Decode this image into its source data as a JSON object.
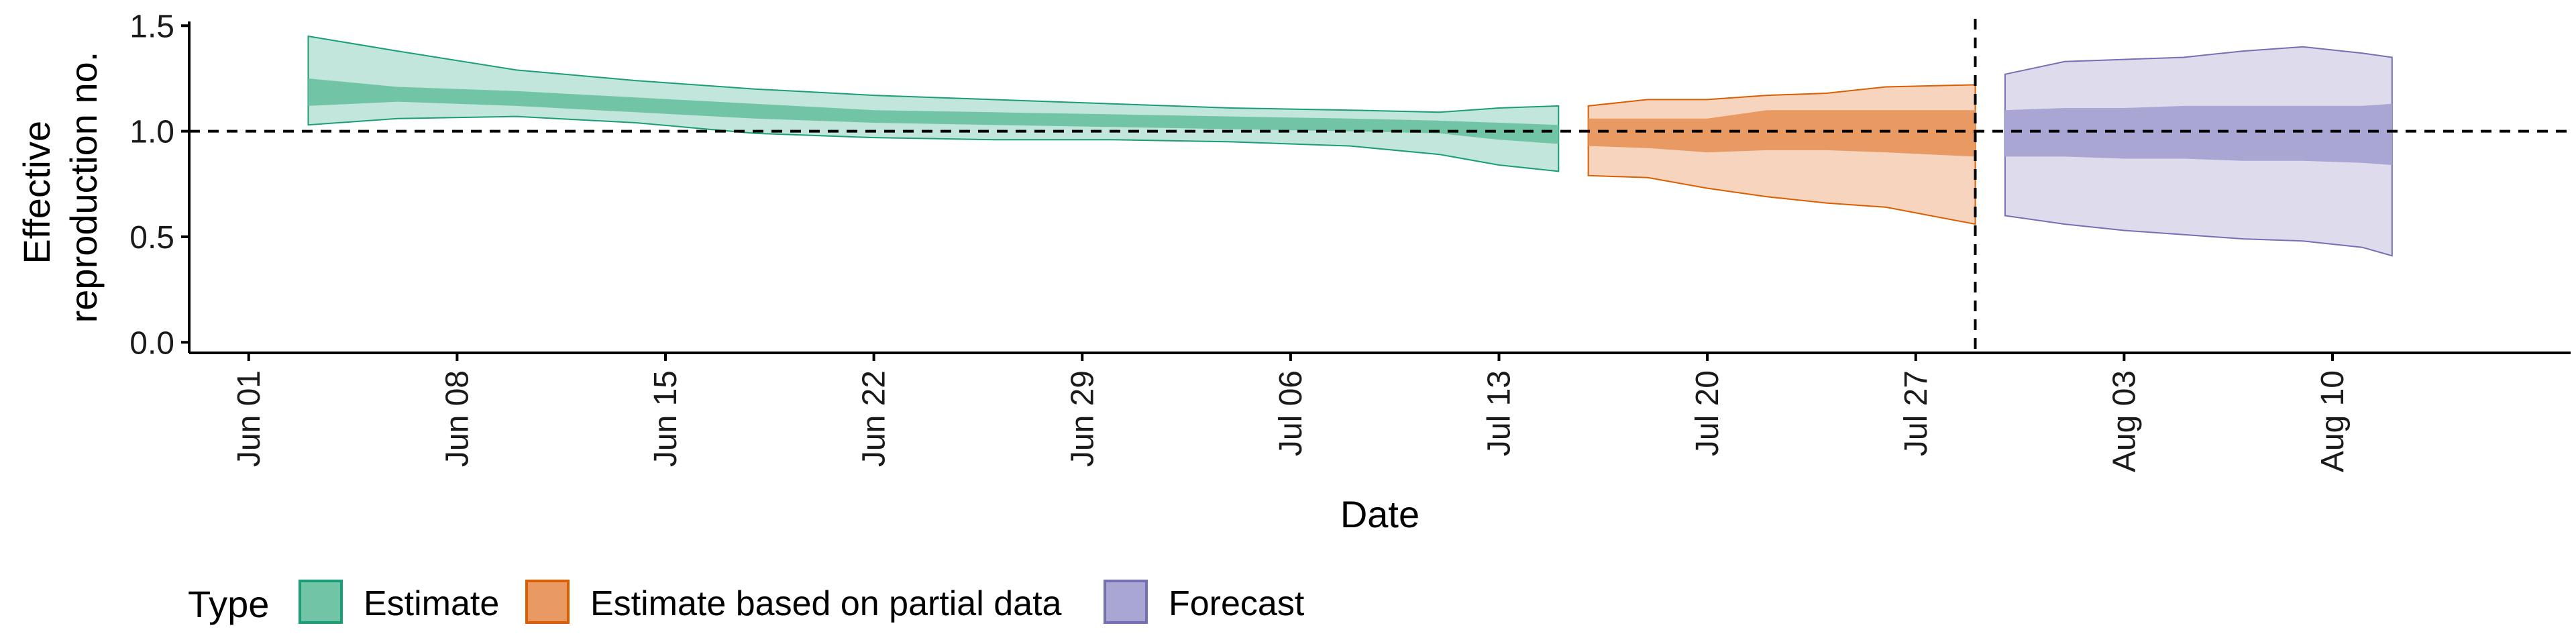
{
  "chart_data": {
    "type": "area",
    "xlabel": "Date",
    "ylabel_lines": [
      "Effective",
      "reproduction no."
    ],
    "ylim": [
      -0.05,
      1.52
    ],
    "yticks": [
      0.0,
      0.5,
      1.0,
      1.5
    ],
    "ytick_labels": [
      "0.0",
      "0.5",
      "1.0",
      "1.5"
    ],
    "xlim": [
      "2020-05-30",
      "2020-08-18"
    ],
    "xticks": [
      "2020-06-01",
      "2020-06-08",
      "2020-06-15",
      "2020-06-22",
      "2020-06-29",
      "2020-07-06",
      "2020-07-13",
      "2020-07-20",
      "2020-07-27",
      "2020-08-03",
      "2020-08-10"
    ],
    "xtick_labels": [
      "Jun 01",
      "Jun 08",
      "Jun 15",
      "Jun 22",
      "Jun 29",
      "Jul 06",
      "Jul 13",
      "Jul 20",
      "Jul 27",
      "Aug 03",
      "Aug 10"
    ],
    "reference_line_y": 1.0,
    "forecast_start": "2020-07-29",
    "legend_title": "Type",
    "legend_position": "bottom",
    "series": [
      {
        "name": "Estimate",
        "color": "#1b9e77",
        "fill_outer": "#c2e6db",
        "fill_inner": "#71c4a6",
        "dates": [
          "2020-06-03",
          "2020-06-06",
          "2020-06-10",
          "2020-06-14",
          "2020-06-18",
          "2020-06-22",
          "2020-06-26",
          "2020-06-30",
          "2020-07-04",
          "2020-07-08",
          "2020-07-11",
          "2020-07-13",
          "2020-07-15"
        ],
        "lower_90": [
          1.03,
          1.06,
          1.07,
          1.04,
          0.99,
          0.97,
          0.96,
          0.96,
          0.95,
          0.93,
          0.89,
          0.84,
          0.81
        ],
        "lower_50": [
          1.12,
          1.14,
          1.12,
          1.09,
          1.06,
          1.04,
          1.03,
          1.02,
          1.01,
          1.0,
          0.99,
          0.96,
          0.94
        ],
        "upper_50": [
          1.25,
          1.21,
          1.19,
          1.16,
          1.13,
          1.1,
          1.09,
          1.08,
          1.07,
          1.06,
          1.05,
          1.04,
          1.03
        ],
        "upper_90": [
          1.45,
          1.38,
          1.29,
          1.24,
          1.2,
          1.17,
          1.15,
          1.13,
          1.11,
          1.1,
          1.09,
          1.11,
          1.12
        ]
      },
      {
        "name": "Estimate based on partial data",
        "color": "#d95f02",
        "fill_outer": "#f6d4be",
        "fill_inner": "#e99a62",
        "dates": [
          "2020-07-16",
          "2020-07-18",
          "2020-07-20",
          "2020-07-22",
          "2020-07-24",
          "2020-07-26",
          "2020-07-29"
        ],
        "lower_90": [
          0.79,
          0.78,
          0.73,
          0.69,
          0.66,
          0.64,
          0.56
        ],
        "lower_50": [
          0.93,
          0.92,
          0.9,
          0.91,
          0.91,
          0.9,
          0.88
        ],
        "upper_50": [
          1.06,
          1.06,
          1.06,
          1.1,
          1.1,
          1.1,
          1.1
        ],
        "upper_90": [
          1.12,
          1.15,
          1.15,
          1.17,
          1.18,
          1.21,
          1.22
        ]
      },
      {
        "name": "Forecast",
        "color": "#7570b3",
        "fill_outer": "#dddbec",
        "fill_inner": "#a9a6d3",
        "dates": [
          "2020-07-30",
          "2020-08-01",
          "2020-08-03",
          "2020-08-05",
          "2020-08-07",
          "2020-08-09",
          "2020-08-11",
          "2020-08-12"
        ],
        "lower_90": [
          0.6,
          0.56,
          0.53,
          0.51,
          0.49,
          0.48,
          0.45,
          0.41
        ],
        "lower_50": [
          0.88,
          0.88,
          0.87,
          0.87,
          0.86,
          0.86,
          0.85,
          0.84
        ],
        "upper_50": [
          1.1,
          1.11,
          1.11,
          1.12,
          1.12,
          1.12,
          1.12,
          1.13
        ],
        "upper_90": [
          1.27,
          1.33,
          1.34,
          1.35,
          1.38,
          1.4,
          1.37,
          1.35
        ]
      }
    ]
  }
}
